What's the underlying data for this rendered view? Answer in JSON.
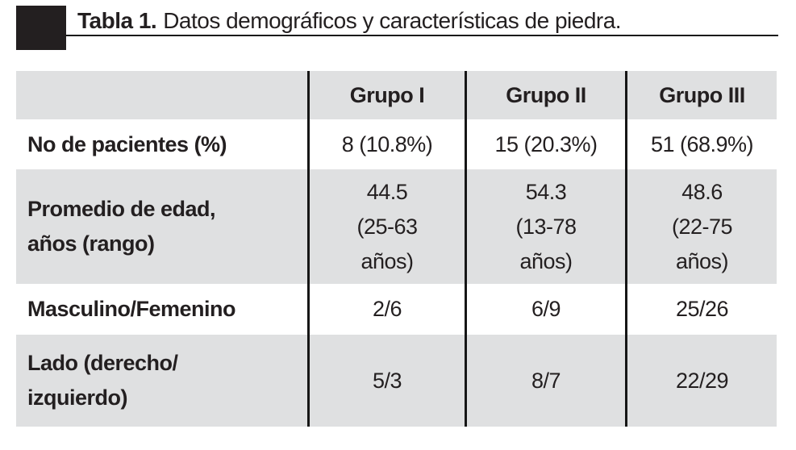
{
  "title": {
    "prefix": "Tabla 1.",
    "text": "Datos demográficos y características de piedra."
  },
  "table": {
    "columns": [
      "",
      "Grupo I",
      "Grupo II",
      "Grupo III"
    ],
    "rows": [
      {
        "label": "No de pacientes (%)",
        "values": [
          "8 (10.8%)",
          "15 (20.3%)",
          "51 (68.9%)"
        ]
      },
      {
        "label": "Promedio de edad,\naños (rango)",
        "values": [
          "44.5\n(25-63\naños)",
          "54.3\n(13-78\naños)",
          "48.6\n(22-75\naños)"
        ]
      },
      {
        "label": "Masculino/Femenino",
        "values": [
          "2/6",
          "6/9",
          "25/26"
        ]
      },
      {
        "label": "Lado (derecho/\nizquierdo)",
        "values": [
          "5/3",
          "8/7",
          "22/29"
        ]
      }
    ]
  },
  "colors": {
    "row_shade": "#dfe0e1",
    "text": "#231f20",
    "divider": "#161616",
    "title_marker": "#231f20"
  }
}
